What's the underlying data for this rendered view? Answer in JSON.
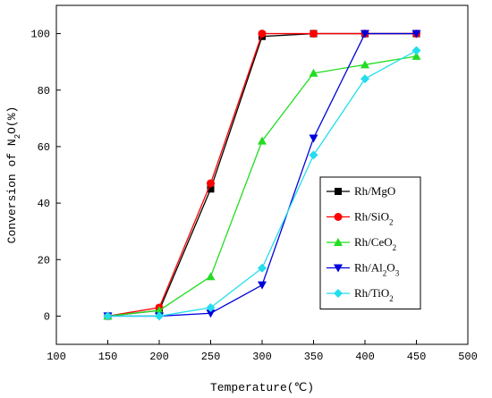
{
  "chart_data": {
    "type": "line",
    "xlabel": "Temperature(℃)",
    "ylabel": "Conversion of N2O(%)",
    "ylabel_parts": [
      "Conversion of N",
      "2",
      "O(%)"
    ],
    "xlim": [
      100,
      500
    ],
    "ylim": [
      -10,
      110
    ],
    "xticks": [
      "100",
      "150",
      "200",
      "250",
      "300",
      "350",
      "400",
      "450",
      "500"
    ],
    "yticks": [
      "0",
      "20",
      "40",
      "60",
      "80",
      "100"
    ],
    "grid": false,
    "legend_position": "right",
    "x": [
      150,
      200,
      250,
      300,
      350,
      400,
      450
    ],
    "series": [
      {
        "name": "Rh/MgO",
        "label_parts": [
          "Rh/MgO"
        ],
        "color": "#000000",
        "marker": "square",
        "values": [
          0,
          2,
          45,
          99,
          100,
          100,
          100
        ]
      },
      {
        "name": "Rh/SiO2",
        "label_parts": [
          "Rh/SiO",
          "2",
          ""
        ],
        "color": "#ff0000",
        "marker": "circle",
        "values": [
          0,
          3,
          47,
          100,
          100,
          100,
          100
        ]
      },
      {
        "name": "Rh/CeO2",
        "label_parts": [
          "Rh/CeO",
          "2",
          ""
        ],
        "color": "#22dd22",
        "marker": "triangle-up",
        "values": [
          0,
          2,
          14,
          62,
          86,
          89,
          92
        ]
      },
      {
        "name": "Rh/Al2O3",
        "label_parts": [
          "Rh/Al",
          "2",
          "O",
          "3",
          ""
        ],
        "color": "#0000dd",
        "marker": "triangle-down",
        "values": [
          0,
          0,
          1,
          11,
          63,
          100,
          100
        ]
      },
      {
        "name": "Rh/TiO2",
        "label_parts": [
          "Rh/TiO",
          "2",
          ""
        ],
        "color": "#22ddee",
        "marker": "diamond",
        "values": [
          0,
          0,
          3,
          17,
          57,
          84,
          94
        ]
      }
    ]
  }
}
